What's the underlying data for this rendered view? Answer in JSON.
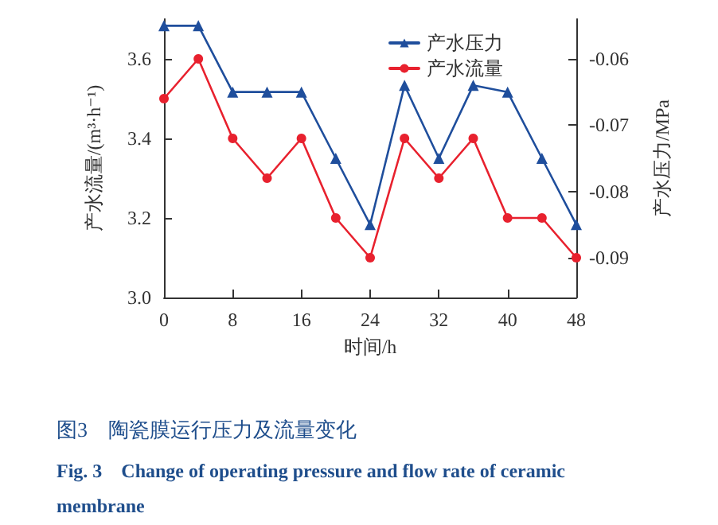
{
  "chart_data": {
    "type": "line",
    "xlabel": "时间/h",
    "ylabel": "产水流量/(m³·h⁻¹)",
    "y2label": "产水压力/MPa",
    "x": [
      0,
      4,
      8,
      12,
      16,
      20,
      24,
      28,
      32,
      36,
      40,
      44,
      48
    ],
    "series": [
      {
        "name": "产水压力",
        "color": "#1f4e9c",
        "marker": "triangle",
        "axis": "y2",
        "values": [
          -0.055,
          -0.055,
          -0.065,
          -0.065,
          -0.065,
          -0.075,
          -0.085,
          -0.064,
          -0.075,
          -0.064,
          -0.065,
          -0.075,
          -0.085
        ]
      },
      {
        "name": "产水流量",
        "color": "#e8212e",
        "marker": "circle",
        "values": [
          3.5,
          3.6,
          3.4,
          3.3,
          3.4,
          3.2,
          3.1,
          3.4,
          3.3,
          3.4,
          3.2,
          3.2,
          3.1
        ]
      }
    ],
    "xlim": [
      0,
      48
    ],
    "xticks": [
      0,
      8,
      16,
      24,
      32,
      40,
      48
    ],
    "ylim": [
      3.0,
      3.7
    ],
    "yticks": [
      {
        "value": 3.0,
        "label": "3.0"
      },
      3.2,
      3.4,
      3.6
    ],
    "y2lim": [
      -0.096,
      -0.054
    ],
    "y2ticks": [
      -0.09,
      -0.08,
      -0.07,
      -0.06
    ],
    "legend": "top right",
    "grid": false,
    "annotations": [
      "图3　陶瓷膜运行压力及流量变化",
      "Fig. 3　Change of operating pressure and flow rate of ceramic membrane"
    ]
  }
}
